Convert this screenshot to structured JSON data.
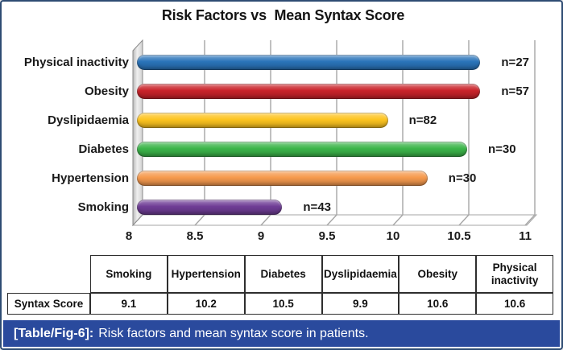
{
  "title": "Risk Factors vs  Mean Syntax Score",
  "chart_data": {
    "type": "bar",
    "orientation": "horizontal",
    "style": "3d-excel",
    "categories": [
      "Physical inactivity",
      "Obesity",
      "Dyslipidaemia",
      "Diabetes",
      "Hypertension",
      "Smoking"
    ],
    "values": [
      10.6,
      10.6,
      9.9,
      10.5,
      10.2,
      9.1
    ],
    "bar_labels": [
      "n=27",
      "n=57",
      "n=82",
      "n=30",
      "n=30",
      "n=43"
    ],
    "bar_colors": [
      "#2a74ba",
      "#c9232a",
      "#fdc420",
      "#3cb54a",
      "#f69a4e",
      "#6f3d96"
    ],
    "xlim": [
      8,
      11
    ],
    "x_ticks": [
      8,
      8.5,
      9,
      9.5,
      10,
      10.5,
      11
    ],
    "x_tick_labels": [
      "8",
      "8.5",
      "9",
      "9.5",
      "10",
      "10.5",
      "11"
    ],
    "grid": true,
    "legend": false,
    "grid_color": "#a6a6a6"
  },
  "table": {
    "row_label": "Syntax Score",
    "columns": [
      "Smoking",
      "Hypertension",
      "Diabetes",
      "Dyslipidaemia",
      "Obesity",
      "Physical inactivity"
    ],
    "values": [
      "9.1",
      "10.2",
      "10.5",
      "9.9",
      "10.6",
      "10.6"
    ]
  },
  "caption": {
    "label": "[Table/Fig-6]:",
    "text": "Risk factors and mean syntax score in patients."
  },
  "colors": {
    "caption_bg": "#2a4a9d",
    "frame_border": "#2e4c73"
  }
}
